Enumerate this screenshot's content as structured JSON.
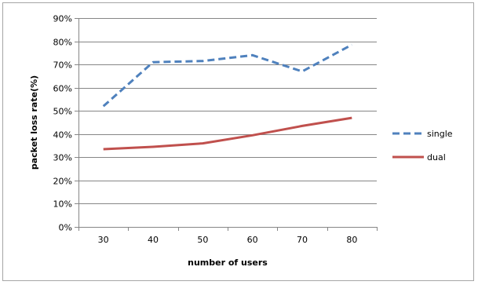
{
  "chart_data": {
    "type": "line",
    "title": "",
    "xlabel": "number of users",
    "ylabel": "packet loss rate(%)",
    "x": [
      30,
      40,
      50,
      60,
      70,
      80
    ],
    "x_tick_labels": [
      "30",
      "40",
      "50",
      "60",
      "70",
      "80"
    ],
    "ylim": [
      0,
      90
    ],
    "y_ticks": [
      0,
      10,
      20,
      30,
      40,
      50,
      60,
      70,
      80,
      90
    ],
    "y_tick_labels": [
      "0%",
      "10%",
      "20%",
      "30%",
      "40%",
      "50%",
      "60%",
      "70%",
      "80%",
      "90%"
    ],
    "grid": true,
    "legend_position": "right",
    "series": [
      {
        "name": "single",
        "values": [
          52,
          71,
          71.5,
          74,
          67,
          78.5
        ],
        "color": "#4f81bd",
        "style": "dashed"
      },
      {
        "name": "dual",
        "values": [
          33.5,
          34.5,
          36,
          39.5,
          43.5,
          47
        ],
        "color": "#c0504d",
        "style": "solid"
      }
    ]
  }
}
